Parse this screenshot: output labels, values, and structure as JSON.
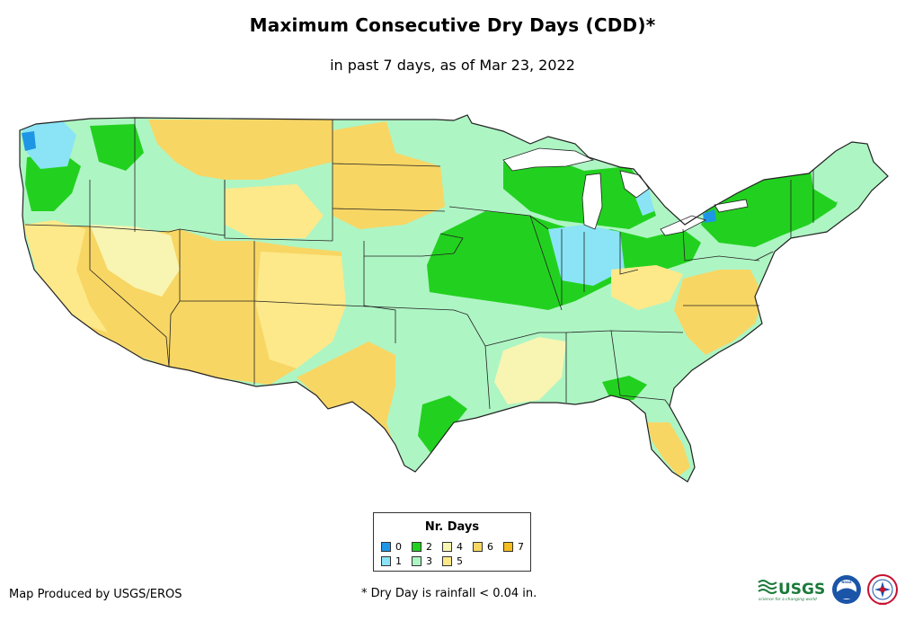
{
  "map": {
    "title": "Maximum Consecutive Dry Days (CDD)*",
    "subtitle": "in past 7 days, as of Mar 23, 2022",
    "region": "Contiguous United States"
  },
  "legend": {
    "title": "Nr. Days",
    "items": [
      {
        "label": "0",
        "color": "#1e96e6"
      },
      {
        "label": "1",
        "color": "#8ae4f5"
      },
      {
        "label": "2",
        "color": "#22d11f"
      },
      {
        "label": "3",
        "color": "#aef5c4"
      },
      {
        "label": "4",
        "color": "#f8f5b2"
      },
      {
        "label": "5",
        "color": "#fde98a"
      },
      {
        "label": "6",
        "color": "#f8d664"
      },
      {
        "label": "7",
        "color": "#f5be1f"
      }
    ]
  },
  "footer": {
    "credit": "Map Produced by USGS/EROS",
    "note": "* Dry Day is rainfall < 0.04 in."
  },
  "logos": {
    "usgs": "USGS",
    "usgs_tagline": "science for a changing world",
    "noaa": "NOAA",
    "nws": "NWS"
  }
}
